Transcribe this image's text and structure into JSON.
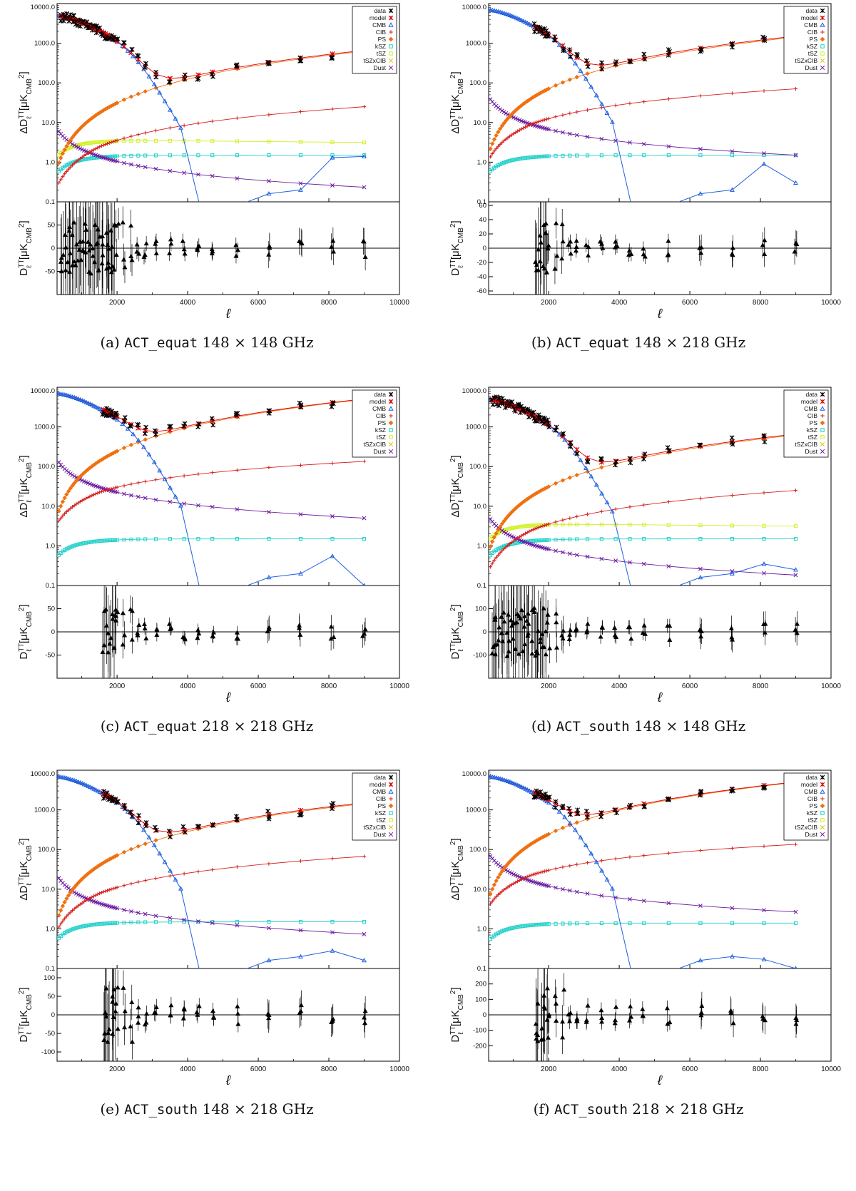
{
  "figure": {
    "x_axis_label": "ℓ",
    "upper_ylabel_prefix": "ΔD",
    "lower_ylabel_prefix": "D",
    "ylabel_sup": "TT",
    "ylabel_sub": "ℓ",
    "ylabel_unit": "[μK",
    "ylabel_unit_sub": "CMB",
    "ylabel_unit_sup": "2",
    "ylabel_close": "]"
  },
  "legend": [
    {
      "label": "data",
      "symbol": "star",
      "color": "#000000"
    },
    {
      "label": "model",
      "symbol": "star",
      "color": "#e00000"
    },
    {
      "label": "CMB",
      "symbol": "triangle",
      "color": "#1f5fe0"
    },
    {
      "label": "CIB",
      "symbol": "plus",
      "color": "#d42020"
    },
    {
      "label": "PS",
      "symbol": "diamond",
      "color": "#f07010"
    },
    {
      "label": "kSZ",
      "symbol": "square",
      "color": "#20d0c8"
    },
    {
      "label": "tSZ",
      "symbol": "square",
      "color": "#d0f020"
    },
    {
      "label": "tSZxCIB",
      "symbol": "x",
      "color": "#e0c000"
    },
    {
      "label": "Dust",
      "symbol": "x",
      "color": "#6a1aa0"
    }
  ],
  "colors": {
    "data": "#000000",
    "model": "#e00000",
    "cmb": "#1f5fe0",
    "cib": "#d42020",
    "ps": "#f07010",
    "ksz": "#20d0c8",
    "tsz": "#d0f020",
    "dust": "#6a1aa0",
    "residual": "#000000"
  },
  "chart_data": [
    {
      "id": "a",
      "type": "line",
      "caption_letter": "(a)",
      "caption_field": "ACT_equat",
      "caption_freq": "148 × 148 GHz",
      "xlim": [
        300,
        10000
      ],
      "x_ticks": [
        "2000",
        "4000",
        "6000",
        "8000",
        "10000"
      ],
      "upper_ylim": [
        0.1,
        10000
      ],
      "upper_y_ticks": [
        "0.1",
        "1.0",
        "10.0",
        "100.0",
        "1000.0",
        "10000.0"
      ],
      "lower_ylim": [
        -100,
        100
      ],
      "lower_y_ticks": [
        "-50",
        "0",
        "50"
      ],
      "ps_amp": 70,
      "cib_a": 6,
      "cib_e": 1.3,
      "ksz": 1.5,
      "tsz": 3.5,
      "dust_amp": 0.7,
      "cmb_scale": 1.0,
      "cmb_tail": [
        1.3,
        0.4
      ],
      "data_start": 400,
      "resid_amp": 80
    },
    {
      "id": "b",
      "type": "line",
      "caption_letter": "(b)",
      "caption_field": "ACT_equat",
      "caption_freq": "148 × 218 GHz",
      "xlim": [
        300,
        10000
      ],
      "x_ticks": [
        "2000",
        "4000",
        "6000",
        "8000",
        "10000"
      ],
      "upper_ylim": [
        0.1,
        10000
      ],
      "upper_y_ticks": [
        "0.1",
        "1.0",
        "10.0",
        "100.0",
        "1000.0",
        "10000.0"
      ],
      "lower_ylim": [
        -65,
        65
      ],
      "lower_y_ticks": [
        "-60",
        "-40",
        "-20",
        "0",
        "20",
        "40",
        "60"
      ],
      "ps_amp": 160,
      "cib_a": 20,
      "cib_e": 1.15,
      "ksz": 1.5,
      "tsz": 0,
      "dust_amp": 4.5,
      "cmb_scale": 1.4,
      "cmb_tail": [
        0.9,
        0.3
      ],
      "data_start": 1600,
      "resid_amp": 50
    },
    {
      "id": "c",
      "type": "line",
      "caption_letter": "(c)",
      "caption_field": "ACT_equat",
      "caption_freq": "218 × 218 GHz",
      "xlim": [
        300,
        10000
      ],
      "x_ticks": [
        "2000",
        "4000",
        "6000",
        "8000",
        "10000"
      ],
      "upper_ylim": [
        0.1,
        10000
      ],
      "upper_y_ticks": [
        "0.1",
        "1.0",
        "10.0",
        "100.0",
        "1000.0",
        "10000.0"
      ],
      "lower_ylim": [
        -100,
        100
      ],
      "lower_y_ticks": [
        "-50",
        "0",
        "50"
      ],
      "ps_amp": 550,
      "cib_a": 45,
      "cib_e": 1.0,
      "ksz": 1.5,
      "tsz": 0,
      "dust_amp": 15,
      "cmb_scale": 1.4,
      "cmb_tail": [
        0.55,
        0.1
      ],
      "data_start": 1600,
      "resid_amp": 70
    },
    {
      "id": "d",
      "type": "line",
      "caption_letter": "(d)",
      "caption_field": "ACT_south",
      "caption_freq": "148 × 148 GHz",
      "xlim": [
        300,
        10000
      ],
      "x_ticks": [
        "2000",
        "4000",
        "6000",
        "8000",
        "10000"
      ],
      "upper_ylim": [
        0.1,
        10000
      ],
      "upper_y_ticks": [
        "0.1",
        "1.0",
        "10.0",
        "100.0",
        "1000.0",
        "10000.0"
      ],
      "lower_ylim": [
        -200,
        200
      ],
      "lower_y_ticks": [
        "-100",
        "0",
        "100"
      ],
      "ps_amp": 70,
      "cib_a": 6,
      "cib_e": 1.3,
      "ksz": 1.5,
      "tsz": 3.5,
      "dust_amp": 0.55,
      "cmb_scale": 1.0,
      "cmb_tail": [
        0.35,
        0.25
      ],
      "data_start": 400,
      "resid_amp": 150
    },
    {
      "id": "e",
      "type": "line",
      "caption_letter": "(e)",
      "caption_field": "ACT_south",
      "caption_freq": "148 × 218 GHz",
      "xlim": [
        300,
        10000
      ],
      "x_ticks": [
        "2000",
        "4000",
        "6000",
        "8000",
        "10000"
      ],
      "upper_ylim": [
        0.1,
        10000
      ],
      "upper_y_ticks": [
        "0.1",
        "1.0",
        "10.0",
        "100.0",
        "1000.0",
        "10000.0"
      ],
      "lower_ylim": [
        -125,
        125
      ],
      "lower_y_ticks": [
        "-100",
        "-50",
        "0",
        "50",
        "100"
      ],
      "ps_amp": 160,
      "cib_a": 18,
      "cib_e": 1.2,
      "ksz": 1.5,
      "tsz": 0,
      "dust_amp": 2.2,
      "cmb_scale": 1.4,
      "cmb_tail": [
        0.28,
        0.16
      ],
      "data_start": 1600,
      "resid_amp": 110
    },
    {
      "id": "f",
      "type": "line",
      "caption_letter": "(f)",
      "caption_field": "ACT_south",
      "caption_freq": "218 × 218 GHz",
      "xlim": [
        300,
        10000
      ],
      "x_ticks": [
        "2000",
        "4000",
        "6000",
        "8000",
        "10000"
      ],
      "upper_ylim": [
        0.1,
        10000
      ],
      "upper_y_ticks": [
        "0.1",
        "1.0",
        "10.0",
        "100.0",
        "1000.0",
        "10000.0"
      ],
      "lower_ylim": [
        -300,
        300
      ],
      "lower_y_ticks": [
        "-200",
        "-100",
        "0",
        "100",
        "200"
      ],
      "ps_amp": 550,
      "cib_a": 45,
      "cib_e": 1.0,
      "ksz": 1.4,
      "tsz": 0,
      "dust_amp": 8,
      "cmb_scale": 1.4,
      "cmb_tail": [
        0.17,
        0.1
      ],
      "data_start": 1600,
      "resid_amp": 250
    }
  ]
}
